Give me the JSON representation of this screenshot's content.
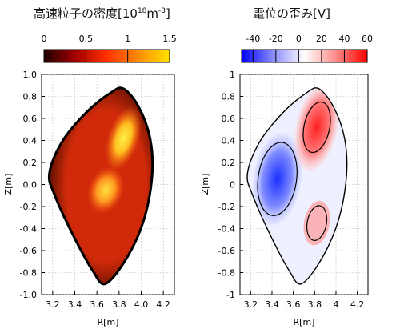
{
  "chart_data": [
    {
      "type": "heatmap",
      "title_main": "高速粒子の密度[10",
      "title_sup": "18",
      "title_unit": "m",
      "title_sup2": "-3",
      "title_end": "]",
      "xlabel": "R[m]",
      "ylabel": "Z[m]",
      "xlim": [
        3.1,
        4.3
      ],
      "ylim": [
        -1.0,
        1.0
      ],
      "xticks": [
        "3.2",
        "3.4",
        "3.6",
        "3.8",
        "4.0",
        "4.2"
      ],
      "yticks": [
        "1.0",
        "0.8",
        "0.6",
        "0.4",
        "0.2",
        "0.0",
        "-0.2",
        "-0.4",
        "-0.6",
        "-0.8",
        "-1.0"
      ],
      "colorbar": {
        "range": [
          0,
          1.5
        ],
        "ticks": [
          "0",
          "0.5",
          "1",
          "1.5"
        ],
        "colors": [
          "#200000",
          "#a00000",
          "#ff3000",
          "#ff8c00",
          "#ffe000"
        ]
      },
      "palette": {
        "boundary": "#000000",
        "fill": "#d42a0a",
        "hot1": "#ff8a1a",
        "hot2": "#ffe040"
      },
      "features": [
        {
          "label": "upper hot region",
          "R": 3.84,
          "Z": 0.42,
          "value": 1.4
        },
        {
          "label": "lower hot region",
          "R": 3.68,
          "Z": -0.05,
          "value": 1.1
        }
      ]
    },
    {
      "type": "heatmap",
      "title": "電位の歪み[V]",
      "xlabel": "R[m]",
      "ylabel": "Z[m]",
      "xlim": [
        3.1,
        4.3
      ],
      "ylim": [
        -1.0,
        1.0
      ],
      "xticks": [
        "3.2",
        "3.4",
        "3.6",
        "3.8",
        "4",
        "4.2"
      ],
      "yticks": [
        "1",
        "0.8",
        "0.6",
        "0.4",
        "0.2",
        "0",
        "-0.2",
        "-0.4",
        "-0.6",
        "-0.8",
        "-1"
      ],
      "colorbar": {
        "range": [
          -50,
          60
        ],
        "ticks": [
          "-40",
          "-20",
          "0",
          "20",
          "40",
          "60"
        ],
        "colors": [
          "#0000ff",
          "#8a8aff",
          "#ffffff",
          "#ff8a8a",
          "#ff0000"
        ]
      },
      "palette": {
        "contour": "#000000",
        "positive": "#ff3c3c",
        "negative": "#2a40ff"
      },
      "features": [
        {
          "label": "positive peak",
          "R": 3.82,
          "Z": 0.52,
          "value": 55
        },
        {
          "label": "negative peak",
          "R": 3.45,
          "Z": 0.05,
          "value": -45
        },
        {
          "label": "positive lobe",
          "R": 3.82,
          "Z": -0.35,
          "value": 25
        }
      ]
    }
  ]
}
